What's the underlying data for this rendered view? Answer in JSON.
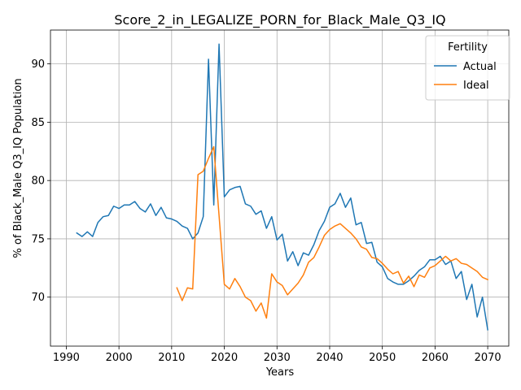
{
  "chart_data": {
    "type": "line",
    "title": "Score_2_in_LEGALIZE_PORN_for_Black_Male_Q3_IQ",
    "xlabel": "Years",
    "ylabel": "% of Black_Male Q3_IQ Population",
    "xlim": [
      1987,
      2074
    ],
    "ylim": [
      65.8,
      92.9
    ],
    "xticks": [
      1990,
      2000,
      2010,
      2020,
      2030,
      2040,
      2050,
      2060,
      2070
    ],
    "yticks": [
      70,
      75,
      80,
      85,
      90
    ],
    "grid": true,
    "legend": {
      "title": "Fertility",
      "placement": "top-right"
    },
    "series": [
      {
        "name": "Actual",
        "color": "#1f77b4",
        "x": [
          1992,
          1993,
          1994,
          1995,
          1996,
          1997,
          1998,
          1999,
          2000,
          2001,
          2002,
          2003,
          2004,
          2005,
          2006,
          2007,
          2008,
          2009,
          2010,
          2011,
          2012,
          2013,
          2014,
          2015,
          2016,
          2017,
          2018,
          2019,
          2020,
          2021,
          2022,
          2023,
          2024,
          2025,
          2026,
          2027,
          2028,
          2029,
          2030,
          2031,
          2032,
          2033,
          2034,
          2035,
          2036,
          2037,
          2038,
          2039,
          2040,
          2041,
          2042,
          2043,
          2044,
          2045,
          2046,
          2047,
          2048,
          2049,
          2050,
          2051,
          2052,
          2053,
          2054,
          2055,
          2056,
          2057,
          2058,
          2059,
          2060,
          2061,
          2062,
          2063,
          2064,
          2065,
          2066,
          2067,
          2068,
          2069,
          2070
        ],
        "values": [
          75.5,
          75.2,
          75.6,
          75.2,
          76.4,
          76.9,
          77.0,
          77.8,
          77.6,
          77.9,
          77.9,
          78.2,
          77.6,
          77.3,
          78.0,
          77.0,
          77.7,
          76.8,
          76.7,
          76.5,
          76.1,
          75.9,
          75.0,
          75.5,
          76.9,
          90.4,
          77.9,
          91.7,
          78.6,
          79.2,
          79.4,
          79.5,
          78.0,
          77.8,
          77.1,
          77.4,
          75.9,
          76.9,
          74.9,
          75.4,
          73.1,
          73.9,
          72.7,
          73.8,
          73.6,
          74.5,
          75.7,
          76.5,
          77.7,
          78.0,
          78.9,
          77.7,
          78.5,
          76.2,
          76.4,
          74.6,
          74.7,
          73.0,
          72.6,
          71.6,
          71.3,
          71.1,
          71.1,
          71.4,
          71.8,
          72.3,
          72.6,
          73.2,
          73.2,
          73.5,
          72.8,
          73.1,
          71.6,
          72.2,
          69.8,
          71.1,
          68.3,
          70.0,
          67.2
        ]
      },
      {
        "name": "Ideal",
        "color": "#ff7f0e",
        "x": [
          2011,
          2012,
          2013,
          2014,
          2015,
          2016,
          2017,
          2018,
          2019,
          2020,
          2021,
          2022,
          2023,
          2024,
          2025,
          2026,
          2027,
          2028,
          2029,
          2030,
          2031,
          2032,
          2033,
          2034,
          2035,
          2036,
          2037,
          2038,
          2039,
          2040,
          2041,
          2042,
          2043,
          2044,
          2045,
          2046,
          2047,
          2048,
          2049,
          2050,
          2051,
          2052,
          2053,
          2054,
          2055,
          2056,
          2057,
          2058,
          2059,
          2060,
          2061,
          2062,
          2063,
          2064,
          2065,
          2066,
          2067,
          2068,
          2069,
          2070
        ],
        "values": [
          70.8,
          69.7,
          70.8,
          70.7,
          80.5,
          80.8,
          81.9,
          82.9,
          77.0,
          71.1,
          70.7,
          71.6,
          70.9,
          70.0,
          69.7,
          68.8,
          69.5,
          68.2,
          72.0,
          71.3,
          71.0,
          70.2,
          70.7,
          71.2,
          71.9,
          73.0,
          73.4,
          74.3,
          75.3,
          75.8,
          76.1,
          76.3,
          75.9,
          75.5,
          75.0,
          74.3,
          74.1,
          73.4,
          73.3,
          72.9,
          72.4,
          72.0,
          72.2,
          71.2,
          71.8,
          70.9,
          71.9,
          71.7,
          72.5,
          72.7,
          73.1,
          73.5,
          73.1,
          73.3,
          72.9,
          72.8,
          72.5,
          72.2,
          71.7,
          71.5
        ]
      }
    ]
  }
}
